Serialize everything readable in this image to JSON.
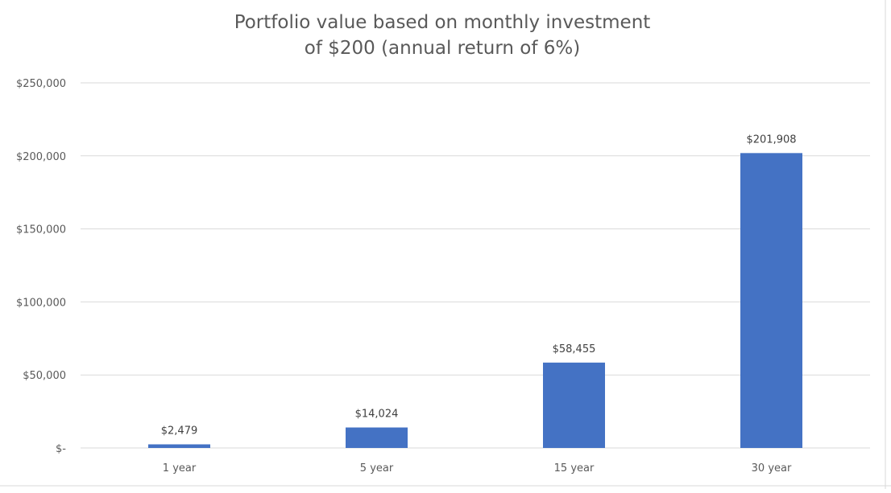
{
  "chart_data": {
    "type": "bar",
    "title_line1": "Portfolio value based on monthly investment",
    "title_line2": "of $200 (annual return of 6%)",
    "categories": [
      "1 year",
      "5 year",
      "15 year",
      "30 year"
    ],
    "values": [
      2479,
      14024,
      58455,
      201908
    ],
    "data_labels": [
      "$2,479",
      "$14,024",
      "$58,455",
      "$201,908"
    ],
    "y_ticks": [
      0,
      50000,
      100000,
      150000,
      200000,
      250000
    ],
    "y_tick_labels": [
      "$-",
      "$50,000",
      "$100,000",
      "$150,000",
      "$200,000",
      "$250,000"
    ],
    "ylim": [
      0,
      250000
    ],
    "xlabel": "",
    "ylabel": "",
    "grid": true,
    "legend": "none",
    "colors": {
      "bar": "#4472C4",
      "grid": "#D9D9D9",
      "text": "#595959"
    }
  }
}
